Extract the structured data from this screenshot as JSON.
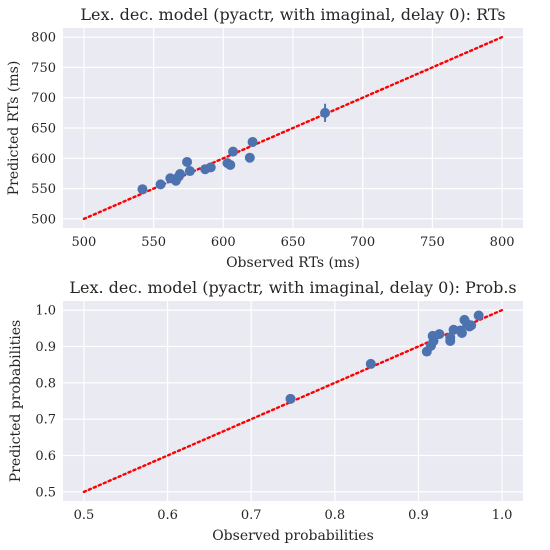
{
  "chart_data": [
    {
      "type": "scatter",
      "title": "Lex. dec. model (pyactr, with imaginal, delay 0): RTs",
      "xlabel": "Observed RTs (ms)",
      "ylabel": "Predicted RTs (ms)",
      "xlim": [
        485,
        815
      ],
      "ylim": [
        485,
        815
      ],
      "xticks": [
        500,
        550,
        600,
        650,
        700,
        750,
        800
      ],
      "yticks": [
        500,
        550,
        600,
        650,
        700,
        750,
        800
      ],
      "reference_line": {
        "x": [
          500,
          800
        ],
        "y": [
          500,
          800
        ],
        "style": "dotted",
        "color": "#ff0000"
      },
      "point_color": "#4c72b0",
      "grid": true,
      "points": [
        {
          "x": 542,
          "y": 549,
          "err": 3
        },
        {
          "x": 555,
          "y": 557,
          "err": 3
        },
        {
          "x": 562,
          "y": 567,
          "err": 3
        },
        {
          "x": 566,
          "y": 563,
          "err": 3
        },
        {
          "x": 568,
          "y": 570,
          "err": 3
        },
        {
          "x": 569,
          "y": 574,
          "err": 3
        },
        {
          "x": 574,
          "y": 594,
          "err": 3
        },
        {
          "x": 576,
          "y": 579,
          "err": 3
        },
        {
          "x": 587,
          "y": 582,
          "err": 3
        },
        {
          "x": 591,
          "y": 585,
          "err": 3
        },
        {
          "x": 603,
          "y": 592,
          "err": 3
        },
        {
          "x": 605,
          "y": 589,
          "err": 3
        },
        {
          "x": 607,
          "y": 611,
          "err": 3
        },
        {
          "x": 619,
          "y": 601,
          "err": 3
        },
        {
          "x": 621,
          "y": 627,
          "err": 3
        },
        {
          "x": 673,
          "y": 675,
          "err": 15
        }
      ]
    },
    {
      "type": "scatter",
      "title": "Lex. dec. model (pyactr, with imaginal, delay 0): Prob.s",
      "xlabel": "Observed probabilities",
      "ylabel": "Predicted probabilities",
      "xlim": [
        0.475,
        1.025
      ],
      "ylim": [
        0.475,
        1.025
      ],
      "xticks": [
        0.5,
        0.6,
        0.7,
        0.8,
        0.9,
        1.0
      ],
      "yticks": [
        0.5,
        0.6,
        0.7,
        0.8,
        0.9,
        1.0
      ],
      "reference_line": {
        "x": [
          0.5,
          1.0
        ],
        "y": [
          0.5,
          1.0
        ],
        "style": "dotted",
        "color": "#ff0000"
      },
      "point_color": "#4c72b0",
      "grid": true,
      "points": [
        {
          "x": 0.747,
          "y": 0.756,
          "err": 0.012
        },
        {
          "x": 0.843,
          "y": 0.852,
          "err": 0.004
        },
        {
          "x": 0.91,
          "y": 0.886,
          "err": 0.004
        },
        {
          "x": 0.915,
          "y": 0.902,
          "err": 0.004
        },
        {
          "x": 0.918,
          "y": 0.915,
          "err": 0.004
        },
        {
          "x": 0.917,
          "y": 0.929,
          "err": 0.004
        },
        {
          "x": 0.925,
          "y": 0.934,
          "err": 0.004
        },
        {
          "x": 0.938,
          "y": 0.915,
          "err": 0.004
        },
        {
          "x": 0.938,
          "y": 0.925,
          "err": 0.004
        },
        {
          "x": 0.942,
          "y": 0.946,
          "err": 0.004
        },
        {
          "x": 0.95,
          "y": 0.944,
          "err": 0.004
        },
        {
          "x": 0.952,
          "y": 0.937,
          "err": 0.004
        },
        {
          "x": 0.955,
          "y": 0.973,
          "err": 0.004
        },
        {
          "x": 0.958,
          "y": 0.962,
          "err": 0.004
        },
        {
          "x": 0.961,
          "y": 0.955,
          "err": 0.004
        },
        {
          "x": 0.963,
          "y": 0.958,
          "err": 0.004
        },
        {
          "x": 0.972,
          "y": 0.985,
          "err": 0.004
        }
      ]
    }
  ]
}
